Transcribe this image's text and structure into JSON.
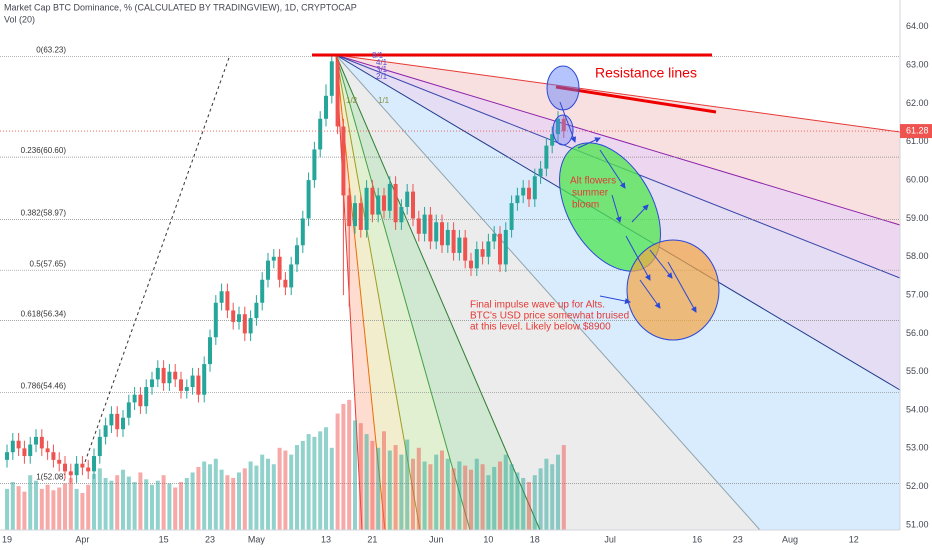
{
  "chart_data": {
    "type": "candlestick",
    "title": "Market Cap BTC Dominance, % (CALCULATED BY TRADINGVIEW), 1D, CRYPTOCAP",
    "indicator_label": "Vol (20)",
    "up_color": "#26a69a",
    "down_color": "#ef5350",
    "open": [
      52.7,
      52.9,
      53.2,
      53.0,
      52.8,
      53.1,
      53.3,
      53.0,
      52.9,
      52.7,
      52.6,
      52.4,
      52.3,
      52.6,
      52.5,
      52.4,
      52.8,
      53.3,
      53.6,
      53.9,
      53.5,
      53.8,
      54.2,
      54.4,
      54.1,
      54.6,
      54.8,
      55.1,
      54.7,
      55.0,
      54.8,
      54.5,
      54.6,
      54.9,
      54.4,
      55.2,
      55.9,
      56.8,
      57.1,
      56.6,
      56.3,
      56.5,
      56.0,
      56.4,
      56.8,
      57.4,
      57.9,
      58.0,
      57.4,
      57.2,
      57.8,
      58.3,
      59.0,
      60.0,
      60.8,
      61.6,
      62.2,
      63.1,
      61.4,
      59.6,
      58.8,
      59.4,
      58.7,
      59.8,
      59.1,
      59.6,
      59.2,
      59.9,
      58.9,
      59.3,
      59.7,
      59.0,
      58.6,
      59.1,
      58.4,
      58.9,
      58.3,
      58.7,
      58.1,
      58.5,
      57.9,
      57.7,
      58.2,
      58.0,
      58.4,
      58.6,
      57.8,
      58.7,
      59.4,
      59.6,
      59.8,
      59.5,
      60.1,
      60.3,
      60.9,
      61.2,
      61.6
    ],
    "high": [
      53.1,
      53.4,
      53.4,
      53.2,
      53.3,
      53.5,
      53.5,
      53.2,
      53.1,
      52.9,
      52.8,
      52.6,
      52.8,
      52.8,
      52.7,
      53.0,
      53.5,
      53.8,
      54.1,
      54.1,
      54.0,
      54.4,
      54.6,
      54.6,
      54.8,
      55.0,
      55.3,
      55.3,
      55.2,
      55.2,
      55.0,
      54.8,
      55.1,
      55.1,
      55.4,
      56.1,
      57.0,
      57.3,
      57.3,
      56.8,
      56.7,
      56.7,
      56.6,
      57.0,
      57.6,
      58.1,
      58.2,
      58.2,
      57.6,
      58.0,
      58.5,
      59.2,
      60.2,
      61.0,
      61.8,
      62.5,
      63.23,
      63.2,
      61.6,
      59.8,
      59.6,
      59.6,
      60.0,
      60.0,
      59.8,
      59.8,
      60.1,
      60.1,
      59.5,
      59.9,
      59.9,
      59.2,
      59.3,
      59.3,
      59.1,
      59.1,
      58.9,
      58.9,
      58.7,
      58.7,
      58.1,
      58.4,
      58.4,
      58.6,
      58.8,
      58.8,
      58.9,
      59.6,
      59.8,
      60.0,
      60.0,
      60.3,
      60.5,
      61.1,
      61.4,
      61.8,
      61.7
    ],
    "low": [
      52.5,
      52.7,
      52.8,
      52.6,
      52.6,
      52.9,
      52.8,
      52.7,
      52.5,
      52.4,
      52.2,
      52.1,
      52.1,
      52.3,
      52.2,
      52.2,
      52.6,
      53.1,
      53.4,
      53.3,
      53.3,
      53.6,
      54.0,
      53.9,
      53.9,
      54.4,
      54.6,
      54.5,
      54.5,
      54.6,
      54.3,
      54.3,
      54.4,
      54.2,
      54.2,
      55.0,
      55.7,
      56.6,
      56.4,
      56.1,
      56.1,
      55.8,
      55.8,
      56.2,
      56.6,
      57.2,
      57.7,
      57.2,
      57.0,
      57.0,
      57.6,
      58.1,
      58.8,
      59.8,
      60.6,
      61.4,
      62.0,
      61.2,
      57.0,
      56.7,
      58.6,
      58.5,
      58.5,
      58.9,
      58.9,
      59.0,
      59.0,
      58.7,
      58.7,
      59.1,
      58.8,
      58.4,
      58.4,
      58.2,
      58.2,
      58.1,
      58.1,
      57.9,
      57.9,
      57.7,
      57.5,
      57.5,
      57.8,
      57.8,
      58.2,
      57.6,
      57.6,
      58.5,
      59.2,
      59.4,
      59.3,
      59.3,
      59.9,
      60.1,
      60.7,
      61.0,
      61.1
    ],
    "close": [
      52.9,
      53.2,
      53.0,
      52.8,
      53.1,
      53.3,
      53.0,
      52.9,
      52.7,
      52.6,
      52.4,
      52.3,
      52.6,
      52.5,
      52.4,
      52.8,
      53.3,
      53.6,
      53.9,
      53.5,
      53.8,
      54.2,
      54.4,
      54.1,
      54.6,
      54.8,
      55.1,
      54.7,
      55.0,
      54.8,
      54.5,
      54.6,
      54.9,
      54.4,
      55.2,
      55.9,
      56.8,
      57.1,
      56.6,
      56.3,
      56.5,
      56.0,
      56.4,
      56.8,
      57.4,
      57.9,
      58.0,
      57.4,
      57.2,
      57.8,
      58.3,
      59.0,
      60.0,
      60.8,
      61.6,
      62.2,
      63.1,
      61.4,
      59.6,
      58.8,
      59.4,
      58.7,
      59.8,
      59.1,
      59.6,
      59.2,
      59.9,
      58.9,
      59.3,
      59.7,
      59.0,
      58.6,
      59.1,
      58.4,
      58.9,
      58.3,
      58.7,
      58.1,
      58.5,
      57.9,
      57.7,
      58.2,
      58.0,
      58.4,
      58.6,
      57.8,
      58.7,
      59.4,
      59.6,
      59.8,
      59.5,
      60.1,
      60.3,
      60.9,
      61.2,
      61.6,
      61.28
    ],
    "volume": [
      30,
      35,
      32,
      28,
      40,
      36,
      30,
      33,
      29,
      31,
      34,
      38,
      30,
      27,
      33,
      41,
      45,
      38,
      36,
      40,
      44,
      39,
      35,
      42,
      37,
      33,
      36,
      40,
      34,
      31,
      35,
      38,
      42,
      46,
      50,
      48,
      52,
      44,
      40,
      38,
      42,
      45,
      50,
      47,
      55,
      52,
      48,
      60,
      58,
      55,
      62,
      65,
      70,
      68,
      72,
      75,
      60,
      85,
      92,
      95,
      80,
      78,
      70,
      65,
      60,
      72,
      58,
      62,
      55,
      66,
      52,
      60,
      50,
      48,
      55,
      58,
      52,
      45,
      50,
      47,
      44,
      52,
      48,
      40,
      46,
      50,
      55,
      48,
      42,
      38,
      35,
      40,
      45,
      52,
      48,
      55,
      62
    ],
    "last_price": 61.28,
    "ylim": [
      50.87,
      64.7
    ],
    "yticks": [
      {
        "value": 51,
        "label": "51.00"
      },
      {
        "value": 52,
        "label": "52.00"
      },
      {
        "value": 53,
        "label": "53.00"
      },
      {
        "value": 54,
        "label": "54.00"
      },
      {
        "value": 55,
        "label": "55.00"
      },
      {
        "value": 56,
        "label": "56.00"
      },
      {
        "value": 57,
        "label": "57.00"
      },
      {
        "value": 58,
        "label": "58.00"
      },
      {
        "value": 59,
        "label": "59.00"
      },
      {
        "value": 60,
        "label": "60.00"
      },
      {
        "value": 61,
        "label": "61.00"
      },
      {
        "value": 62,
        "label": "62.00"
      },
      {
        "value": 63,
        "label": "63.00"
      },
      {
        "value": 64,
        "label": "64.00"
      }
    ],
    "xlim": [
      -1.21,
      153.97
    ],
    "xticks": [
      {
        "value": 0,
        "label": "19"
      },
      {
        "value": 13,
        "label": "Apr"
      },
      {
        "value": 27,
        "label": "15"
      },
      {
        "value": 35,
        "label": "23"
      },
      {
        "value": 43,
        "label": "May"
      },
      {
        "value": 55,
        "label": "13"
      },
      {
        "value": 63,
        "label": "21"
      },
      {
        "value": 74,
        "label": "Jun"
      },
      {
        "value": 83,
        "label": "10"
      },
      {
        "value": 91,
        "label": "18"
      },
      {
        "value": 104,
        "label": "Jul"
      },
      {
        "value": 119,
        "label": "16"
      },
      {
        "value": 126,
        "label": "23"
      },
      {
        "value": 135,
        "label": "Aug"
      },
      {
        "value": 146,
        "label": "12"
      }
    ],
    "fib_levels": [
      {
        "label": "0(63.23)",
        "value": 63.23
      },
      {
        "label": "0.236(60.60)",
        "value": 60.6
      },
      {
        "label": "0.382(58.97)",
        "value": 58.97
      },
      {
        "label": "0.5(57.65)",
        "value": 57.65
      },
      {
        "label": "0.618(56.34)",
        "value": 56.34
      },
      {
        "label": "0.786(54.46)",
        "value": 54.46
      },
      {
        "label": "1(52.08)",
        "value": 52.08
      }
    ],
    "fan_labels": [
      "8/1",
      "4/1",
      "3/1",
      "2/1",
      "1/2",
      "1/1"
    ],
    "annotations": {
      "resistance": "Resistance lines",
      "bloom": [
        "Alt flowers",
        "summer",
        "bloom"
      ],
      "impulse": [
        "Final impulse wave up for Alts.",
        "BTC's USD price somewhat bruised",
        "at this level. Likely below $8900"
      ]
    }
  }
}
